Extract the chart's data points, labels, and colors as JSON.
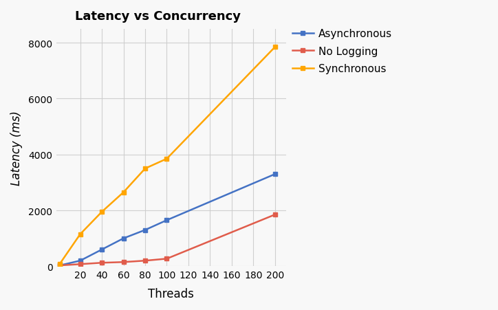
{
  "title": "Latency vs Concurrency",
  "xlabel": "Threads",
  "ylabel": "Latency (ms)",
  "x_values": [
    1,
    20,
    40,
    60,
    80,
    100,
    200
  ],
  "asynchronous": [
    30,
    200,
    600,
    1000,
    1300,
    1650,
    3300
  ],
  "no_logging": [
    30,
    75,
    125,
    150,
    200,
    270,
    1850
  ],
  "synchronous": [
    80,
    1150,
    1950,
    2650,
    3500,
    3850,
    7850
  ],
  "async_color": "#4472C4",
  "nolog_color": "#E05C4B",
  "sync_color": "#FFA500",
  "bg_color": "#f8f8f8",
  "grid_color": "#cccccc",
  "ylim": [
    0,
    8500
  ],
  "xlim": [
    -2,
    210
  ],
  "x_ticks": [
    20,
    40,
    60,
    80,
    100,
    120,
    140,
    160,
    180,
    200
  ],
  "y_ticks": [
    0,
    2000,
    4000,
    6000,
    8000
  ],
  "title_fontsize": 13,
  "label_fontsize": 12,
  "tick_fontsize": 10,
  "legend_fontsize": 11,
  "linewidth": 1.8,
  "markersize": 5,
  "marker_style": "s"
}
